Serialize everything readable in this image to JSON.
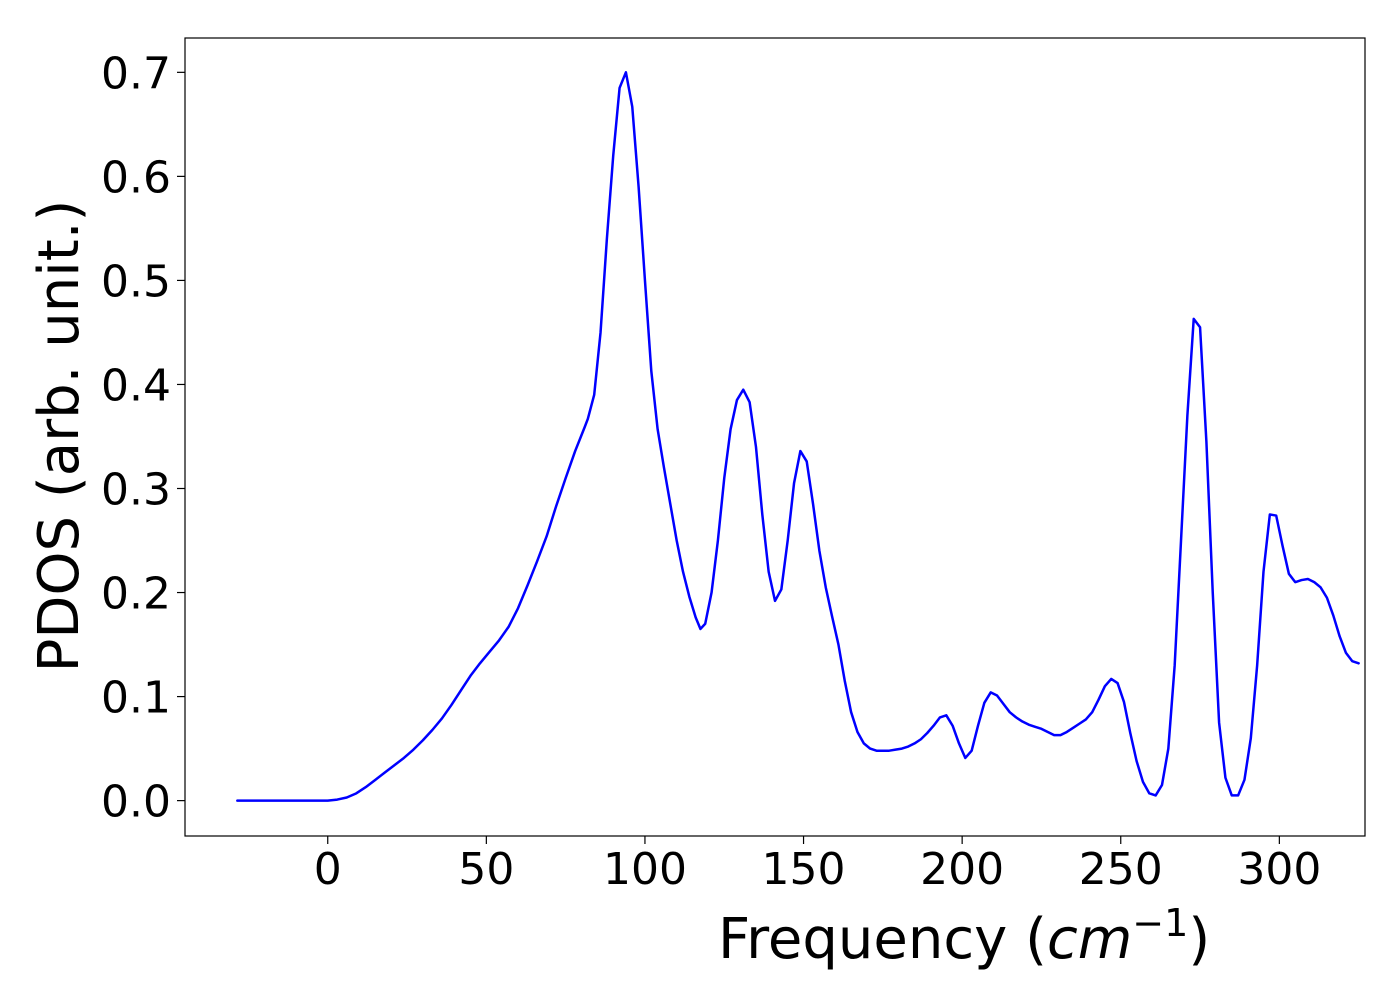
{
  "chart_data": {
    "type": "line",
    "title": "",
    "xlabel": "Frequency (",
    "xlabel_math_base": "cm",
    "xlabel_math_exponent": "−1",
    "xlabel_suffix": ")",
    "ylabel": "PDOS (arb. unit.)",
    "xlim": [
      -45,
      327
    ],
    "ylim": [
      -0.034,
      0.733
    ],
    "grid": false,
    "legend": "none",
    "x_ticks": [
      {
        "value": 0,
        "label": "0"
      },
      {
        "value": 50,
        "label": "50"
      },
      {
        "value": 100,
        "label": "100"
      },
      {
        "value": 150,
        "label": "150"
      },
      {
        "value": 200,
        "label": "200"
      },
      {
        "value": 250,
        "label": "250"
      },
      {
        "value": 300,
        "label": "300"
      }
    ],
    "y_ticks": [
      {
        "value": 0.0,
        "label": "0.0"
      },
      {
        "value": 0.1,
        "label": "0.1"
      },
      {
        "value": 0.2,
        "label": "0.2"
      },
      {
        "value": 0.3,
        "label": "0.3"
      },
      {
        "value": 0.4,
        "label": "0.4"
      },
      {
        "value": 0.5,
        "label": "0.5"
      },
      {
        "value": 0.6,
        "label": "0.6"
      },
      {
        "value": 0.7,
        "label": "0.7"
      }
    ],
    "series": [
      {
        "color": "#0000ff",
        "points": [
          [
            -28.5,
            0.0
          ],
          [
            -10,
            0.0
          ],
          [
            0,
            0.0
          ],
          [
            3,
            0.001
          ],
          [
            6,
            0.003
          ],
          [
            9,
            0.007
          ],
          [
            12,
            0.013
          ],
          [
            15,
            0.02
          ],
          [
            18,
            0.027
          ],
          [
            21,
            0.034
          ],
          [
            24,
            0.041
          ],
          [
            27,
            0.049
          ],
          [
            30,
            0.058
          ],
          [
            33,
            0.068
          ],
          [
            36,
            0.079
          ],
          [
            39,
            0.092
          ],
          [
            42,
            0.106
          ],
          [
            45,
            0.12
          ],
          [
            48,
            0.132
          ],
          [
            51,
            0.143
          ],
          [
            54,
            0.154
          ],
          [
            57,
            0.167
          ],
          [
            60,
            0.185
          ],
          [
            63,
            0.207
          ],
          [
            66,
            0.23
          ],
          [
            69,
            0.254
          ],
          [
            72,
            0.283
          ],
          [
            75,
            0.31
          ],
          [
            78,
            0.336
          ],
          [
            81,
            0.359
          ],
          [
            82,
            0.367
          ],
          [
            84,
            0.39
          ],
          [
            86,
            0.45
          ],
          [
            88,
            0.54
          ],
          [
            90,
            0.62
          ],
          [
            92,
            0.685
          ],
          [
            94,
            0.7
          ],
          [
            96,
            0.667
          ],
          [
            98,
            0.59
          ],
          [
            100,
            0.5
          ],
          [
            102,
            0.413
          ],
          [
            104,
            0.357
          ],
          [
            106,
            0.32
          ],
          [
            108,
            0.285
          ],
          [
            110,
            0.25
          ],
          [
            112,
            0.22
          ],
          [
            114,
            0.196
          ],
          [
            116,
            0.176
          ],
          [
            117.5,
            0.165
          ],
          [
            119,
            0.17
          ],
          [
            121,
            0.2
          ],
          [
            123,
            0.25
          ],
          [
            125,
            0.31
          ],
          [
            127,
            0.357
          ],
          [
            129,
            0.385
          ],
          [
            131,
            0.395
          ],
          [
            133,
            0.383
          ],
          [
            135,
            0.34
          ],
          [
            137,
            0.275
          ],
          [
            139,
            0.22
          ],
          [
            141,
            0.192
          ],
          [
            143,
            0.203
          ],
          [
            145,
            0.25
          ],
          [
            147,
            0.305
          ],
          [
            149,
            0.336
          ],
          [
            151,
            0.326
          ],
          [
            153,
            0.285
          ],
          [
            155,
            0.24
          ],
          [
            157,
            0.205
          ],
          [
            159,
            0.177
          ],
          [
            161,
            0.15
          ],
          [
            163,
            0.115
          ],
          [
            165,
            0.085
          ],
          [
            167,
            0.066
          ],
          [
            169,
            0.055
          ],
          [
            171,
            0.05
          ],
          [
            173,
            0.048
          ],
          [
            175,
            0.048
          ],
          [
            177,
            0.048
          ],
          [
            179,
            0.049
          ],
          [
            181,
            0.05
          ],
          [
            183,
            0.052
          ],
          [
            185,
            0.055
          ],
          [
            187,
            0.059
          ],
          [
            189,
            0.065
          ],
          [
            191,
            0.072
          ],
          [
            193,
            0.08
          ],
          [
            195,
            0.082
          ],
          [
            197,
            0.072
          ],
          [
            199,
            0.055
          ],
          [
            201,
            0.041
          ],
          [
            203,
            0.048
          ],
          [
            205,
            0.072
          ],
          [
            207,
            0.094
          ],
          [
            209,
            0.104
          ],
          [
            211,
            0.101
          ],
          [
            213,
            0.093
          ],
          [
            215,
            0.085
          ],
          [
            217,
            0.08
          ],
          [
            219,
            0.076
          ],
          [
            221,
            0.073
          ],
          [
            223,
            0.071
          ],
          [
            225,
            0.069
          ],
          [
            227,
            0.066
          ],
          [
            229,
            0.063
          ],
          [
            231,
            0.063
          ],
          [
            233,
            0.066
          ],
          [
            235,
            0.07
          ],
          [
            237,
            0.074
          ],
          [
            239,
            0.078
          ],
          [
            241,
            0.085
          ],
          [
            243,
            0.097
          ],
          [
            245,
            0.11
          ],
          [
            247,
            0.117
          ],
          [
            249,
            0.113
          ],
          [
            251,
            0.095
          ],
          [
            253,
            0.065
          ],
          [
            255,
            0.038
          ],
          [
            257,
            0.018
          ],
          [
            259,
            0.007
          ],
          [
            261,
            0.005
          ],
          [
            263,
            0.015
          ],
          [
            265,
            0.05
          ],
          [
            267,
            0.13
          ],
          [
            269,
            0.25
          ],
          [
            271,
            0.37
          ],
          [
            273,
            0.463
          ],
          [
            275,
            0.455
          ],
          [
            277,
            0.345
          ],
          [
            279,
            0.2
          ],
          [
            281,
            0.075
          ],
          [
            283,
            0.022
          ],
          [
            285,
            0.005
          ],
          [
            287,
            0.005
          ],
          [
            289,
            0.02
          ],
          [
            291,
            0.06
          ],
          [
            293,
            0.13
          ],
          [
            295,
            0.22
          ],
          [
            297,
            0.275
          ],
          [
            299,
            0.274
          ],
          [
            301,
            0.245
          ],
          [
            303,
            0.218
          ],
          [
            305,
            0.21
          ],
          [
            307,
            0.212
          ],
          [
            309,
            0.213
          ],
          [
            311,
            0.21
          ],
          [
            313,
            0.205
          ],
          [
            315,
            0.195
          ],
          [
            317,
            0.178
          ],
          [
            319,
            0.158
          ],
          [
            321,
            0.142
          ],
          [
            323,
            0.134
          ],
          [
            325,
            0.132
          ]
        ]
      }
    ]
  }
}
